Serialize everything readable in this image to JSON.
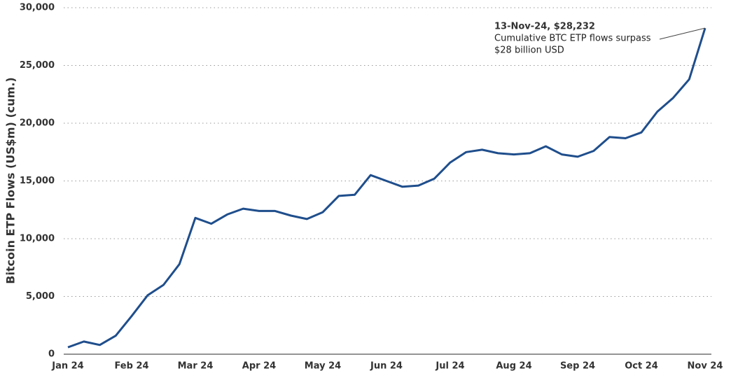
{
  "chart_data": {
    "type": "line",
    "y_label": "Bitcoin ETP Flows (US$m) (cum.)",
    "categories": [
      "Jan 24",
      null,
      null,
      null,
      "Feb 24",
      null,
      null,
      null,
      "Mar 24",
      null,
      null,
      null,
      "Apr 24",
      null,
      null,
      null,
      "May 24",
      null,
      null,
      null,
      "Jun 24",
      null,
      null,
      null,
      "Jul 24",
      null,
      null,
      null,
      "Aug 24",
      null,
      null,
      null,
      "Sep 24",
      null,
      null,
      null,
      "Oct 24",
      null,
      null,
      null,
      "Nov 24"
    ],
    "series": [
      {
        "name": "Bitcoin ETP Flows",
        "color": "#1f4e8c",
        "values": [
          600,
          1100,
          800,
          1600,
          3300,
          5100,
          6000,
          7800,
          11800,
          11300,
          12100,
          12600,
          12400,
          12400,
          12000,
          11700,
          12300,
          13700,
          13800,
          15500,
          15000,
          14500,
          14600,
          15200,
          16600,
          17500,
          17700,
          17400,
          17300,
          17400,
          18000,
          17300,
          17100,
          17600,
          18800,
          18700,
          19200,
          21000,
          22200,
          23800,
          28232
        ]
      }
    ],
    "ylim": [
      0,
      30000
    ],
    "yticks": [
      0,
      {
        "value": 5000,
        "label": "5,000"
      },
      {
        "value": 10000,
        "label": "10,000"
      },
      {
        "value": 15000,
        "label": "15,000"
      },
      {
        "value": 20000,
        "label": "20,000"
      },
      {
        "value": 25000,
        "label": "25,000"
      },
      {
        "value": 30000,
        "label": "30,000"
      }
    ],
    "grid": true,
    "annotation": {
      "title": "13-Nov-24, $28,232",
      "lines": [
        "Cumulative BTC ETP flows surpass",
        "$28 billion USD"
      ]
    }
  }
}
